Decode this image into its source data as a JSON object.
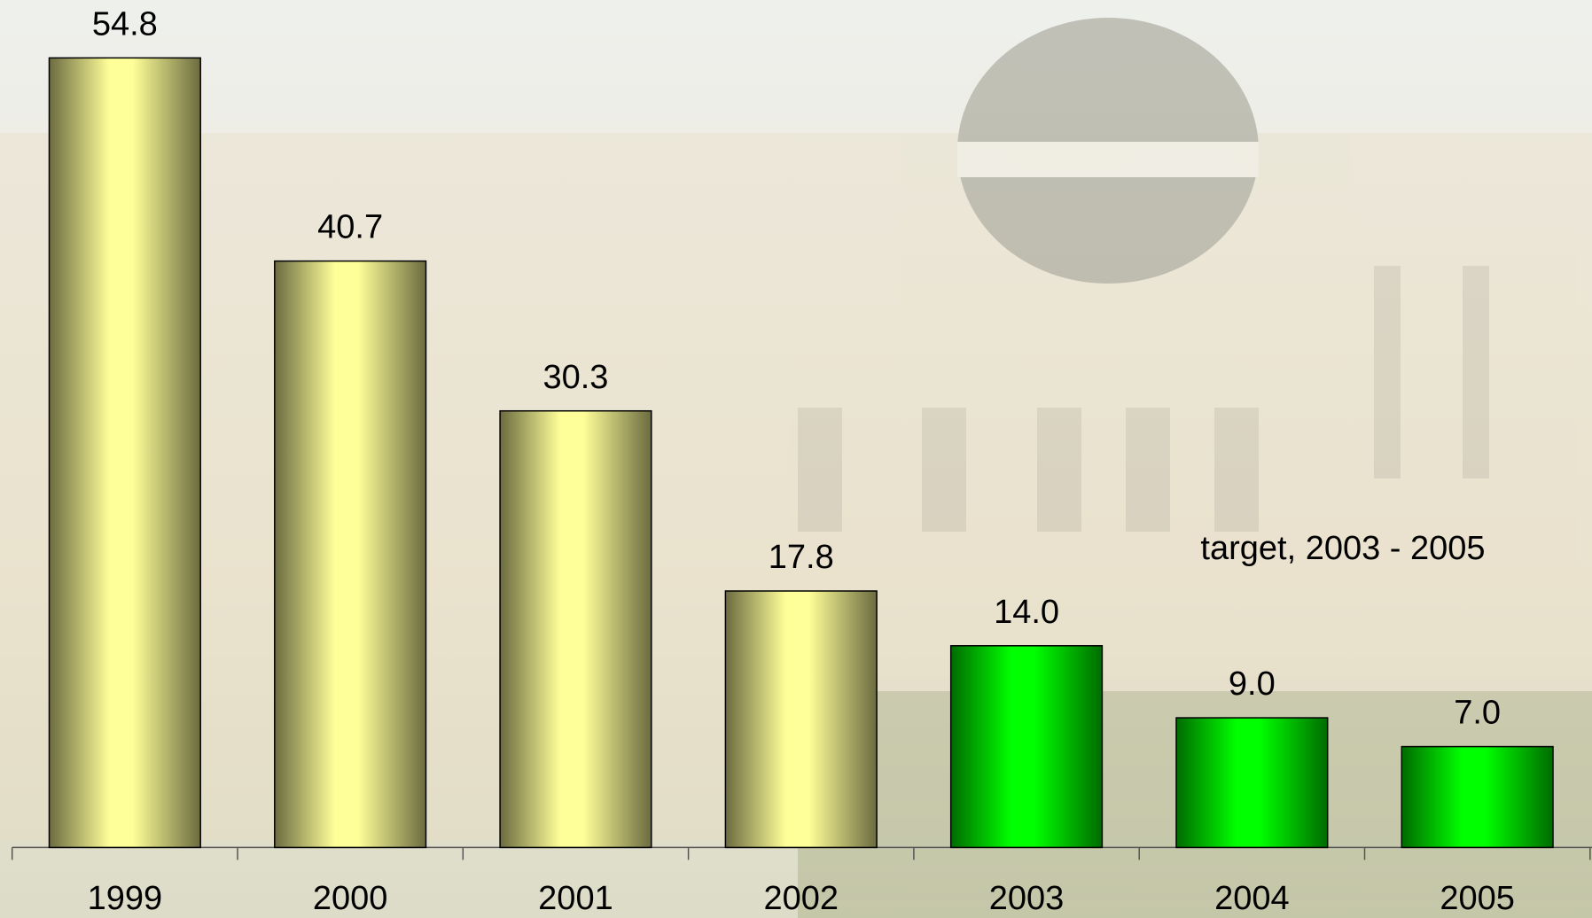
{
  "chart_data": {
    "type": "bar",
    "categories": [
      "1999",
      "2000",
      "2001",
      "2002",
      "2003",
      "2004",
      "2005"
    ],
    "values": [
      54.8,
      40.7,
      30.3,
      17.8,
      14.0,
      9.0,
      7.0
    ],
    "value_labels": [
      "54.8",
      "40.7",
      "30.3",
      "17.8",
      "14.0",
      "9.0",
      "7.0"
    ],
    "colors": [
      "#ffff99",
      "#ffff99",
      "#ffff99",
      "#ffff99",
      "#00ff00",
      "#00ff00",
      "#00ff00"
    ],
    "annotation": "target, 2003 - 2005"
  }
}
